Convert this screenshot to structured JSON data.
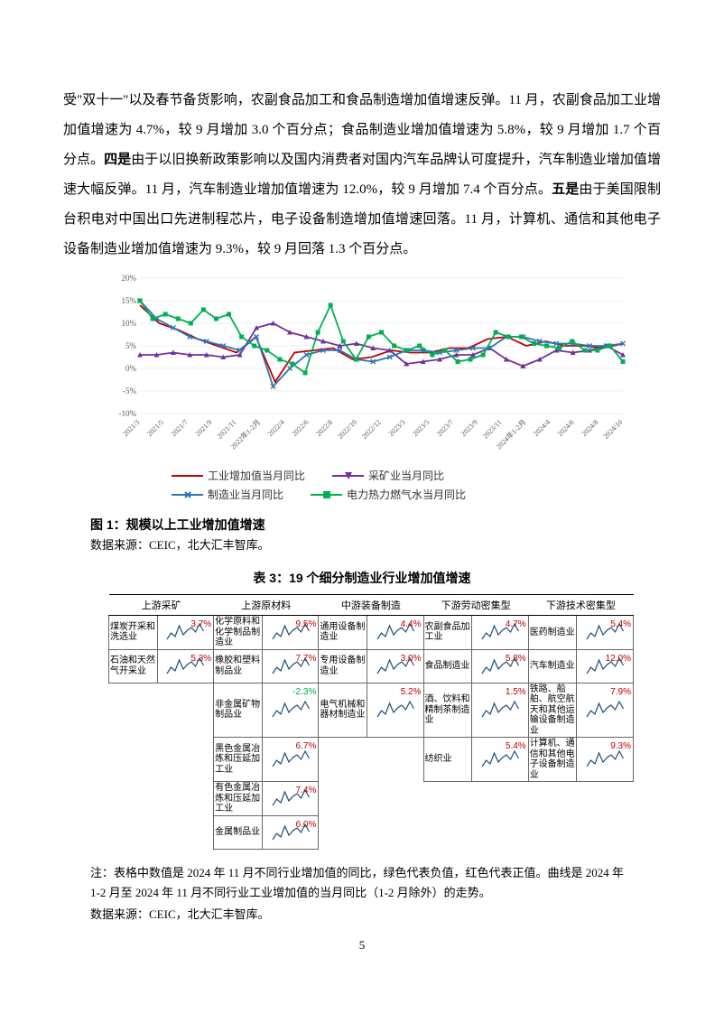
{
  "paragraph": "受\"双十一\"以及春节备货影响，农副食品加工和食品制造增加值增速反弹。11 月，农副食品加工业增加值增速为 4.7%，较 9 月增加 3.0 个百分点；食品制造业增加值增速为 5.8%，较 9 月增加 1.7 个百分点。",
  "bold1": "四是",
  "part2": "由于以旧换新政策影响以及国内消费者对国内汽车品牌认可度提升，汽车制造业增加值增速大幅反弹。11 月，汽车制造业增加值增速为 12.0%，较 9 月增加 7.4 个百分点。",
  "bold2": "五是",
  "part3": "由于美国限制台积电对中国出口先进制程芯片，电子设备制造增加值增速回落。11 月，计算机、通信和其他电子设备制造业增加值增速为 9.3%，较 9 月回落 1.3 个百分点。",
  "chart": {
    "type": "line",
    "ylim": [
      -10,
      20
    ],
    "ytick_step": 5,
    "background_color": "#ffffff",
    "grid_color": "#d9d9d9",
    "x_labels": [
      "2021/3",
      "2021/5",
      "2021/7",
      "2021/9",
      "2021/11",
      "2022年1-2月",
      "2022/4",
      "2022/6",
      "2022/8",
      "2022/10",
      "2022/12",
      "2023/3",
      "2023/5",
      "2023/7",
      "2023/9",
      "2023/11",
      "2024年1-2月",
      "2024/4",
      "2024/6",
      "2024/8",
      "2024/10"
    ],
    "series": [
      {
        "name": "工业增加值当月同比",
        "color": "#c00000",
        "marker": "none",
        "data": [
          14,
          10,
          8.5,
          6.5,
          5,
          3.5,
          7,
          -3,
          3.5,
          4,
          4.5,
          2,
          2.5,
          4,
          3.5,
          3.5,
          4.5,
          4.5,
          6.5,
          7,
          5,
          6,
          5,
          5,
          4.5,
          5.5
        ]
      },
      {
        "name": "采矿业当月同比",
        "color": "#7030a0",
        "marker": "triangle",
        "data": [
          3,
          3,
          3.5,
          3,
          3,
          2.5,
          3,
          9,
          10,
          8,
          7,
          6,
          5,
          5.5,
          4.5,
          4,
          1,
          1.5,
          2,
          3,
          3,
          4.5,
          2,
          0.5,
          2,
          4,
          3.5,
          4,
          5,
          3
        ]
      },
      {
        "name": "制造业当月同比",
        "color": "#2e75b6",
        "marker": "x",
        "data": [
          15,
          11,
          9,
          7,
          6,
          5,
          4,
          7,
          -4,
          0,
          3,
          4,
          4,
          2,
          1.5,
          2.5,
          4,
          4,
          3.5,
          4,
          4.5,
          4.5,
          7,
          7,
          6,
          5.5,
          5.5,
          5,
          5,
          5.5
        ]
      },
      {
        "name": "电力热力燃气水当月同比",
        "color": "#00b050",
        "marker": "square",
        "data": [
          15,
          11,
          12,
          11,
          10,
          13,
          11,
          12,
          7,
          5,
          4,
          2,
          1,
          -1,
          8,
          14,
          6,
          2,
          7,
          8,
          5,
          4,
          5,
          3,
          4,
          1.5,
          2,
          3,
          8,
          7,
          7,
          5.5,
          5,
          4.5,
          6,
          4,
          4,
          5,
          1.5
        ]
      }
    ]
  },
  "legend": {
    "s1": "工业增加值当月同比",
    "s2": "采矿业当月同比",
    "s3": "制造业当月同比",
    "s4": "电力热力燃气水当月同比"
  },
  "fig1_caption": "图 1：规模以上工业增加值增速",
  "fig1_source": "数据来源：CEIC，北大汇丰智库。",
  "table3_title": "表 3：19 个细分制造业行业增加值增速",
  "table3": {
    "headers": [
      "上游采矿",
      "上游原材料",
      "中游装备制造",
      "下游劳动密集型",
      "下游技术密集型"
    ],
    "cells": {
      "r0c0": {
        "label": "煤炭开采和洗选业",
        "value": "3.7%",
        "pos": true
      },
      "r0c1": {
        "label": "化学原料和化学制品制造业",
        "value": "9.5%",
        "pos": true
      },
      "r0c2": {
        "label": "通用设备制造业",
        "value": "4.4%",
        "pos": true
      },
      "r0c3": {
        "label": "农副食品加工业",
        "value": "4.7%",
        "pos": true
      },
      "r0c4": {
        "label": "医药制造业",
        "value": "5.4%",
        "pos": true
      },
      "r1c0": {
        "label": "石油和天然气开采业",
        "value": "5.3%",
        "pos": true
      },
      "r1c1": {
        "label": "橡胶和塑料制品业",
        "value": "7.7%",
        "pos": true
      },
      "r1c2": {
        "label": "专用设备制造业",
        "value": "3.0%",
        "pos": true
      },
      "r1c3": {
        "label": "食品制造业",
        "value": "5.8%",
        "pos": true
      },
      "r1c4": {
        "label": "汽车制造业",
        "value": "12.0%",
        "pos": true
      },
      "r2c1": {
        "label": "非金属矿物制品业",
        "value": "-2.3%",
        "pos": false
      },
      "r2c2": {
        "label": "电气机械和器材制造业",
        "value": "5.2%",
        "pos": true
      },
      "r2c3": {
        "label": "酒、饮料和精制茶制造业",
        "value": "1.5%",
        "pos": true
      },
      "r2c4": {
        "label": "铁路、船舶、航空航天和其他运输设备制造业",
        "value": "7.9%",
        "pos": true
      },
      "r3c1": {
        "label": "黑色金属冶炼和压延加工业",
        "value": "6.7%",
        "pos": true
      },
      "r3c3": {
        "label": "纺织业",
        "value": "5.4%",
        "pos": true
      },
      "r3c4": {
        "label": "计算机、通信和其他电子设备制造业",
        "value": "9.3%",
        "pos": true
      },
      "r4c1": {
        "label": "有色金属冶炼和压延加工业",
        "value": "7.4%",
        "pos": true
      },
      "r5c1": {
        "label": "金属制品业",
        "value": "6.0%",
        "pos": true
      }
    }
  },
  "note": "注：表格中数值是 2024 年 11 月不同行业增加值的同比，绿色代表负值，红色代表正值。曲线是 2024 年 1-2 月至 2024 年 11 月不同行业工业增加值的当月同比（1-2 月除外）的走势。",
  "note_source": "数据来源：CEIC，北大汇丰智库。",
  "page_number": "5"
}
